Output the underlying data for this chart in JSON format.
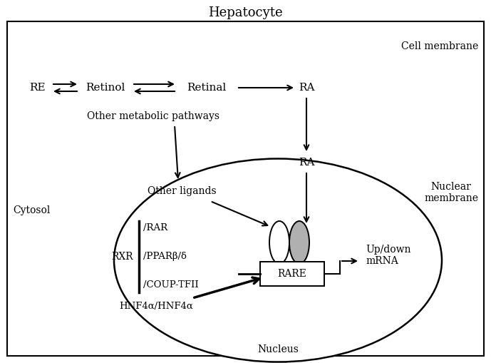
{
  "title": "Hepatocyte",
  "cell_membrane_label": "Cell membrane",
  "nuclear_membrane_label": "Nuclear\nmembrane",
  "cytosol_label": "Cytosol",
  "nucleus_label": "Nucleus",
  "bg_color": "#ffffff",
  "box_edge_color": "#000000",
  "re_label": "RE",
  "retinol_label": "Retinol",
  "retinal_label": "Retinal",
  "ra_top_label": "RA",
  "ra_nucleus_label": "RA",
  "other_metabolic_label": "Other metabolic pathways",
  "other_ligands_label": "Other ligands",
  "rxr_text": "RXR",
  "rar_label": "/RAR",
  "ppar_label": "/PPARβ/δ",
  "coup_label": "/COUP-TFII",
  "hnf4_label": "HNF4α/HNF4α",
  "rare_label": "RARE",
  "updown_label": "Up/down\nmRNA",
  "fig_w": 6.89,
  "fig_h": 5.09,
  "dpi": 100
}
